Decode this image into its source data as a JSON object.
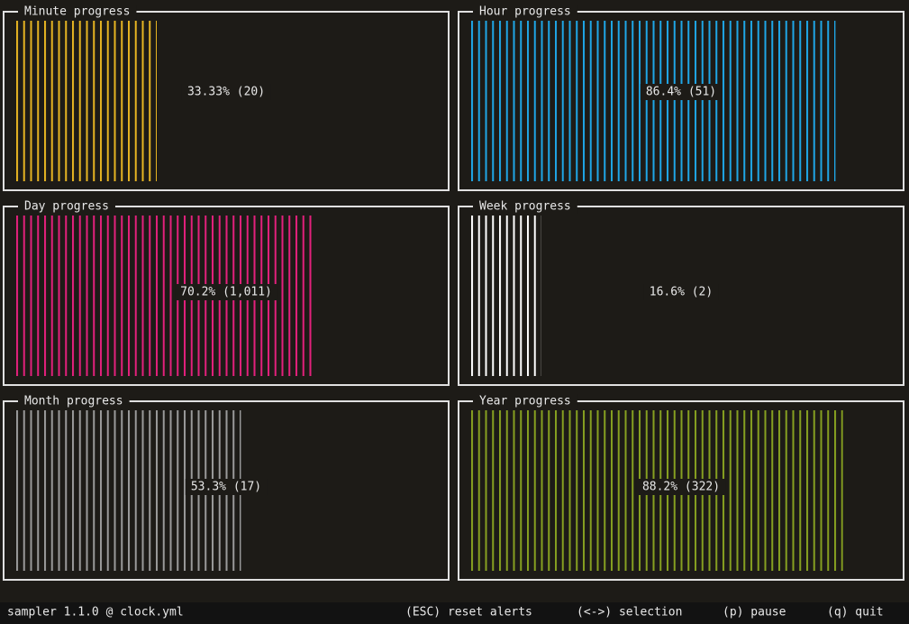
{
  "panels": [
    {
      "title": "Minute progress",
      "value": 33.33,
      "value_label": "33.33% (20)",
      "color": "#e6b422"
    },
    {
      "title": "Hour progress",
      "value": 86.4,
      "value_label": "86.4% (51)",
      "color": "#1fa6e6"
    },
    {
      "title": "Day progress",
      "value": 70.2,
      "value_label": "70.2% (1,011)",
      "color": "#e3207c"
    },
    {
      "title": "Week progress",
      "value": 16.6,
      "value_label": "16.6% (2)",
      "color": "#ffffff"
    },
    {
      "title": "Month progress",
      "value": 53.3,
      "value_label": "53.3% (17)",
      "color": "#9a9a9a"
    },
    {
      "title": "Year progress",
      "value": 88.2,
      "value_label": "88.2% (322)",
      "color": "#86a020"
    }
  ],
  "status_bar": {
    "app": "sampler 1.1.0 @ clock.yml",
    "hints": [
      "(ESC) reset alerts",
      "(<->) selection",
      "(p) pause",
      "(q) quit"
    ]
  }
}
